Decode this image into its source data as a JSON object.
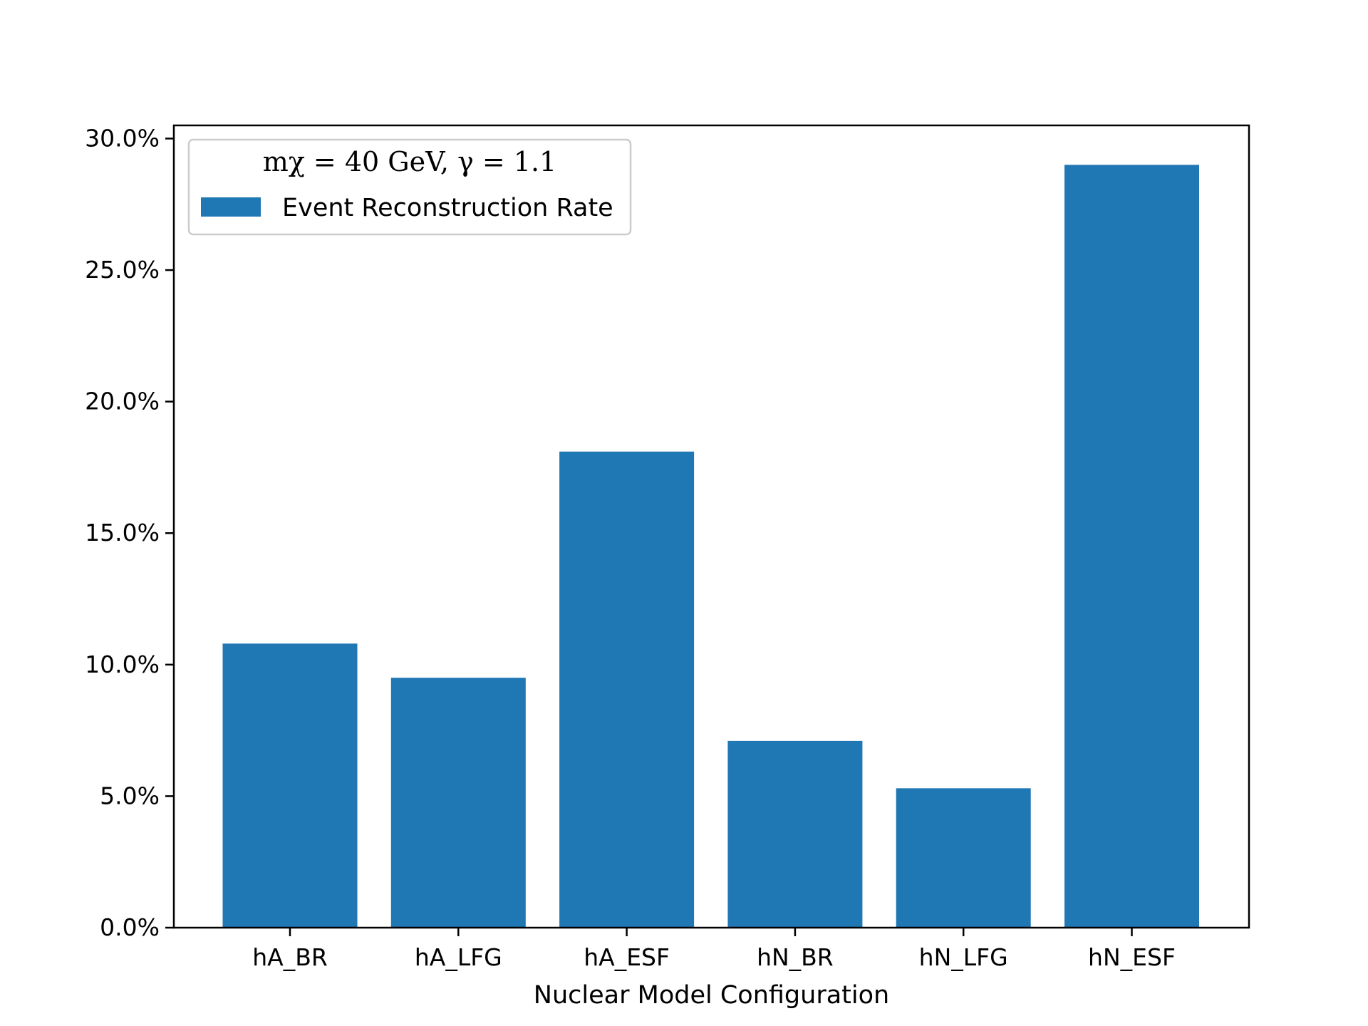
{
  "chart_data": {
    "type": "bar",
    "categories": [
      "hA_BR",
      "hA_LFG",
      "hA_ESF",
      "hN_BR",
      "hN_LFG",
      "hN_ESF"
    ],
    "series": [
      {
        "name": "Event Reconstruction Rate",
        "values": [
          10.8,
          9.5,
          18.1,
          7.1,
          5.3,
          29.0
        ]
      }
    ],
    "title": "",
    "xlabel": "Nuclear Model Configuration",
    "ylabel": "",
    "ylim": [
      0,
      30.5
    ],
    "yticks": [
      0,
      5,
      10,
      15,
      20,
      25,
      30
    ],
    "ytick_labels": [
      "0.0%",
      "5.0%",
      "10.0%",
      "15.0%",
      "20.0%",
      "25.0%",
      "30.0%"
    ],
    "legend": {
      "title": "mχ = 40  GeV,  γ = 1.1",
      "placement": "top-left"
    },
    "grid": false
  },
  "colors": {
    "bar": "#1f77b4",
    "axis": "#000000",
    "legend_border": "#cccccc"
  }
}
